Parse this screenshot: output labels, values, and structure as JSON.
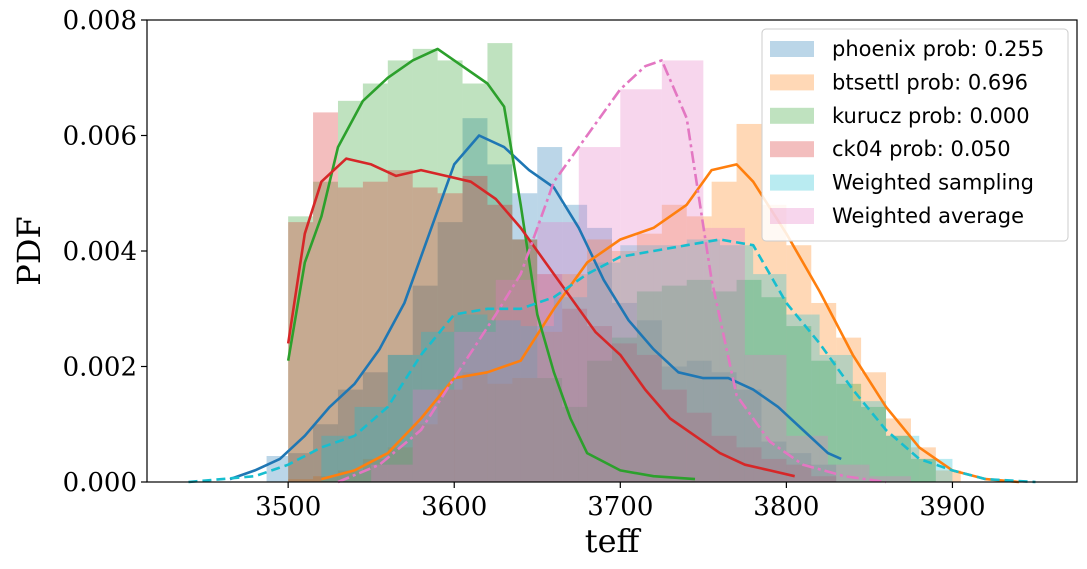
{
  "chart_data": {
    "type": "histogram-kde",
    "xlabel": "teff",
    "ylabel": "PDF",
    "xlim": [
      3415,
      3975
    ],
    "ylim": [
      0,
      0.008
    ],
    "xticks": [
      "3500",
      "3600",
      "3700",
      "3800",
      "3900"
    ],
    "yticks": [
      "0.000",
      "0.002",
      "0.004",
      "0.006",
      "0.008"
    ],
    "legend_position": "top-right",
    "series": [
      {
        "name": "phoenix prob: 0.255",
        "color": "#1f77b4",
        "line_style": "solid",
        "bins": {
          "edges": [
            3487,
            3500,
            3515,
            3530,
            3545,
            3560,
            3575,
            3590,
            3605,
            3620,
            3635,
            3650,
            3665,
            3680,
            3695,
            3710,
            3725,
            3740,
            3755,
            3770,
            3785,
            3800,
            3815,
            3830
          ],
          "heights": [
            0.00045,
            0.0005,
            0.001,
            0.0016,
            0.0019,
            0.0022,
            0.0034,
            0.0045,
            0.0063,
            0.0055,
            0.005,
            0.0058,
            0.0048,
            0.0044,
            0.0031,
            0.0028,
            0.002,
            0.0021,
            0.0019,
            0.0016,
            0.0007,
            0.0005,
            0.0003
          ]
        },
        "kde": {
          "x": [
            3465,
            3480,
            3495,
            3510,
            3525,
            3540,
            3555,
            3570,
            3585,
            3600,
            3615,
            3630,
            3645,
            3660,
            3675,
            3690,
            3705,
            3720,
            3735,
            3750,
            3765,
            3780,
            3795,
            3810,
            3825,
            3833
          ],
          "y": [
            5e-05,
            0.0002,
            0.0004,
            0.0008,
            0.0013,
            0.0017,
            0.0023,
            0.0031,
            0.0043,
            0.0055,
            0.006,
            0.0058,
            0.0054,
            0.0051,
            0.0044,
            0.0035,
            0.0028,
            0.0023,
            0.0019,
            0.0018,
            0.0018,
            0.0016,
            0.0013,
            0.0009,
            0.0005,
            0.0004
          ]
        }
      },
      {
        "name": "btsettl prob: 0.696",
        "color": "#ff7f0e",
        "line_style": "solid",
        "bins": {
          "edges": [
            3500,
            3515,
            3530,
            3545,
            3560,
            3575,
            3590,
            3605,
            3620,
            3635,
            3650,
            3665,
            3680,
            3695,
            3710,
            3725,
            3740,
            3755,
            3770,
            3785,
            3800,
            3815,
            3830,
            3845,
            3860,
            3875,
            3890,
            3905
          ],
          "heights": [
            5e-05,
            0.0001,
            0.0002,
            0.0004,
            0.0006,
            0.001,
            0.0016,
            0.0019,
            0.0017,
            0.0018,
            0.0026,
            0.0036,
            0.0042,
            0.004,
            0.0043,
            0.0048,
            0.0046,
            0.0052,
            0.0062,
            0.0048,
            0.0041,
            0.0031,
            0.0025,
            0.0019,
            0.0011,
            0.0006,
            0.0002
          ]
        },
        "kde": {
          "x": [
            3520,
            3540,
            3560,
            3580,
            3600,
            3620,
            3640,
            3660,
            3680,
            3700,
            3720,
            3740,
            3755,
            3770,
            3780,
            3800,
            3820,
            3840,
            3860,
            3880,
            3900,
            3920,
            3940
          ],
          "y": [
            5e-05,
            0.0002,
            0.0005,
            0.0011,
            0.0018,
            0.0019,
            0.0021,
            0.003,
            0.0038,
            0.0042,
            0.0044,
            0.0048,
            0.0054,
            0.0055,
            0.0052,
            0.0043,
            0.0033,
            0.0022,
            0.0013,
            0.0006,
            0.0002,
            5e-05,
            0
          ]
        }
      },
      {
        "name": "kurucz prob: 0.000",
        "color": "#2ca02c",
        "line_style": "solid",
        "bins": {
          "edges": [
            3500,
            3515,
            3530,
            3545,
            3560,
            3575,
            3590,
            3605,
            3620,
            3635,
            3650,
            3665,
            3680,
            3695,
            3710,
            3725,
            3740,
            3755,
            3770,
            3785,
            3800,
            3815,
            3830,
            3845,
            3860,
            3875,
            3890
          ],
          "heights": [
            0.0046,
            0.0052,
            0.0066,
            0.0069,
            0.0073,
            0.0075,
            0.0073,
            0.0069,
            0.0076,
            0.0042,
            0.0018,
            0.0013,
            0.0021,
            0.0025,
            0.0033,
            0.0034,
            0.0035,
            0.0033,
            0.0035,
            0.0032,
            0.0027,
            0.0021,
            0.0017,
            0.0013,
            0.0008,
            0.0004
          ]
        },
        "kde": {
          "x": [
            3500,
            3510,
            3520,
            3530,
            3545,
            3560,
            3575,
            3590,
            3605,
            3620,
            3630,
            3640,
            3650,
            3660,
            3670,
            3680,
            3700,
            3720,
            3745
          ],
          "y": [
            0.0021,
            0.0038,
            0.0046,
            0.0058,
            0.0066,
            0.007,
            0.0073,
            0.0075,
            0.0072,
            0.0069,
            0.0065,
            0.0048,
            0.0029,
            0.0019,
            0.0011,
            0.0005,
            0.0002,
            0.0001,
            5e-05
          ]
        }
      },
      {
        "name": "ck04 prob: 0.050",
        "color": "#d62728",
        "line_style": "solid",
        "bins": {
          "edges": [
            3500,
            3515,
            3530,
            3545,
            3560,
            3575,
            3590,
            3605,
            3620,
            3635,
            3650,
            3665,
            3680,
            3695,
            3710,
            3725,
            3740,
            3755,
            3770,
            3785,
            3800,
            3815,
            3830
          ],
          "heights": [
            0.0045,
            0.0064,
            0.0051,
            0.0052,
            0.0054,
            0.0051,
            0.005,
            0.0053,
            0.0048,
            0.0042,
            0.0036,
            0.003,
            0.0027,
            0.0024,
            0.0022,
            0.0016,
            0.0012,
            0.0008,
            0.0006,
            0.0004,
            0.0003,
            0.0001
          ]
        },
        "kde": {
          "x": [
            3500,
            3510,
            3520,
            3535,
            3550,
            3565,
            3580,
            3595,
            3610,
            3625,
            3640,
            3655,
            3670,
            3685,
            3700,
            3715,
            3730,
            3745,
            3760,
            3775,
            3790,
            3805
          ],
          "y": [
            0.0024,
            0.0043,
            0.0052,
            0.0056,
            0.0055,
            0.0053,
            0.0054,
            0.0053,
            0.0052,
            0.0049,
            0.0044,
            0.0038,
            0.0032,
            0.0026,
            0.0022,
            0.0016,
            0.0011,
            0.0008,
            0.0005,
            0.0003,
            0.0002,
            0.0001
          ]
        }
      },
      {
        "name": "Weighted sampling",
        "color": "#17becf",
        "line_style": "dashed",
        "bins": {
          "edges": [
            3520,
            3540,
            3560,
            3580,
            3600,
            3620,
            3640,
            3660,
            3680,
            3700,
            3720,
            3740,
            3760,
            3780,
            3800,
            3820,
            3840,
            3860,
            3880,
            3900
          ],
          "heights": [
            0.0008,
            0.0013,
            0.0022,
            0.0026,
            0.0029,
            0.0028,
            0.0027,
            0.0032,
            0.0038,
            0.0041,
            0.0041,
            0.0042,
            0.0041,
            0.0036,
            0.0029,
            0.0022,
            0.0014,
            0.0008,
            0.0004
          ]
        },
        "kde": {
          "x": [
            3440,
            3480,
            3500,
            3520,
            3540,
            3560,
            3580,
            3600,
            3620,
            3640,
            3660,
            3680,
            3700,
            3720,
            3740,
            3760,
            3780,
            3800,
            3820,
            3840,
            3860,
            3880,
            3900,
            3920,
            3950
          ],
          "y": [
            0,
            0.0001,
            0.0003,
            0.0006,
            0.0008,
            0.0013,
            0.0022,
            0.0029,
            0.003,
            0.003,
            0.0032,
            0.0036,
            0.0039,
            0.004,
            0.0041,
            0.0042,
            0.0041,
            0.0031,
            0.0024,
            0.0016,
            0.0009,
            0.0004,
            0.0002,
            5e-05,
            0
          ]
        }
      },
      {
        "name": "Weighted average",
        "color": "#e377c2",
        "line_style": "dashdot",
        "bins": {
          "edges": [
            3550,
            3575,
            3600,
            3625,
            3650,
            3675,
            3700,
            3725,
            3750,
            3775,
            3800,
            3825,
            3850,
            3875
          ],
          "heights": [
            0.0003,
            0.0016,
            0.0026,
            0.0035,
            0.0045,
            0.0058,
            0.0068,
            0.0073,
            0.0044,
            0.0022,
            0.0008,
            0.0003,
            0.0001
          ]
        },
        "kde": {
          "x": [
            3530,
            3555,
            3580,
            3600,
            3625,
            3640,
            3660,
            3680,
            3700,
            3715,
            3725,
            3740,
            3755,
            3770,
            3790,
            3810,
            3835,
            3860
          ],
          "y": [
            0,
            0.0003,
            0.0009,
            0.0018,
            0.0029,
            0.0036,
            0.0052,
            0.006,
            0.0068,
            0.0072,
            0.0073,
            0.0063,
            0.0035,
            0.0015,
            0.0007,
            0.0003,
            0.0001,
            0
          ]
        }
      }
    ]
  }
}
